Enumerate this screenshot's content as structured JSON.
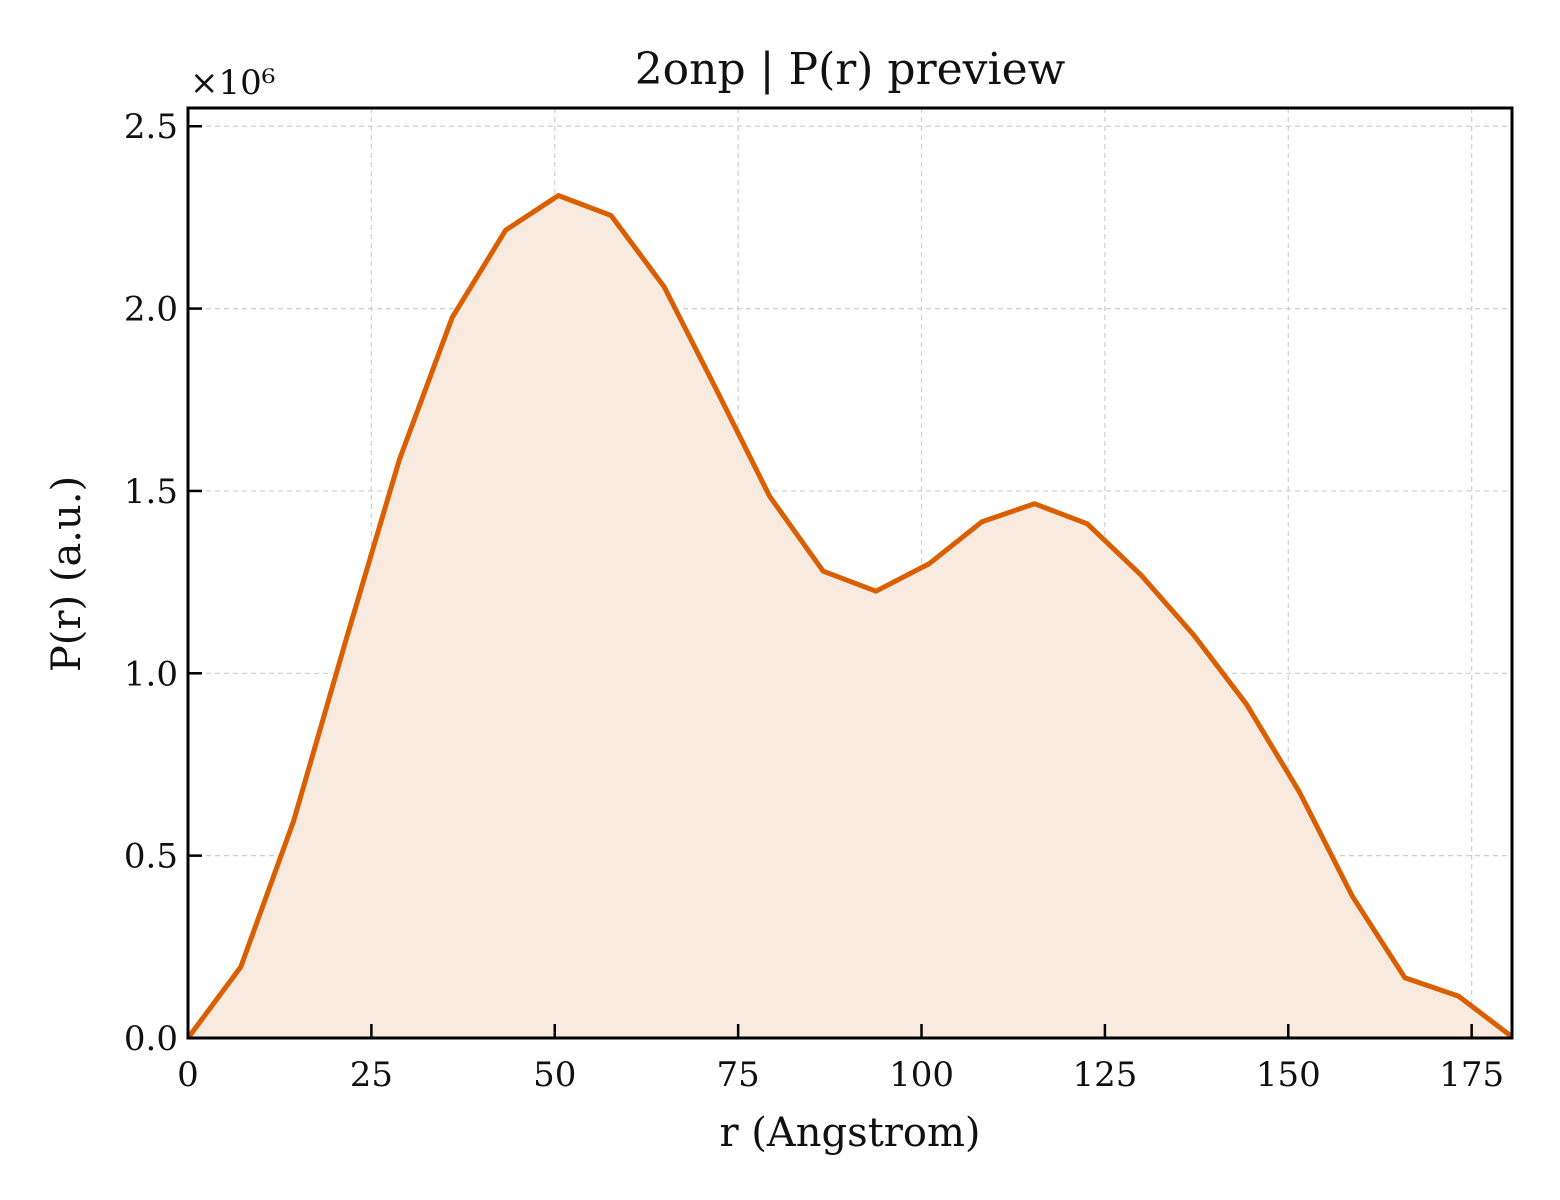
{
  "chart_data": {
    "type": "area",
    "title": "2onp | P(r) preview",
    "xlabel": "r (Angstrom)",
    "ylabel": "P(r) (a.u.)",
    "y_offset_text": "×10⁶",
    "xlim": [
      0,
      180.5
    ],
    "ylim": [
      0,
      2.55
    ],
    "xticks": [
      0,
      25,
      50,
      75,
      100,
      125,
      150,
      175
    ],
    "yticks": [
      0.0,
      0.5,
      1.0,
      1.5,
      2.0,
      2.5
    ],
    "xtick_labels": [
      "0",
      "25",
      "50",
      "75",
      "100",
      "125",
      "150",
      "175"
    ],
    "ytick_labels": [
      "0.0",
      "0.5",
      "1.0",
      "1.5",
      "2.0",
      "2.5"
    ],
    "grid": true,
    "legend": "none",
    "line_color": "#d95f02",
    "fill_color": "#f9eadf",
    "series": [
      {
        "x": [
          0,
          7.2,
          14.4,
          21.6,
          28.8,
          36.0,
          43.3,
          50.5,
          57.7,
          64.9,
          72.1,
          79.3,
          86.6,
          93.8,
          101.0,
          108.2,
          115.4,
          122.6,
          129.9,
          137.1,
          144.3,
          151.5,
          158.7,
          165.9,
          173.2,
          180.4
        ],
        "y": [
          0.0,
          0.195,
          0.595,
          1.095,
          1.585,
          1.975,
          2.215,
          2.31,
          2.255,
          2.06,
          1.775,
          1.485,
          1.28,
          1.225,
          1.3,
          1.415,
          1.465,
          1.41,
          1.27,
          1.105,
          0.915,
          0.675,
          0.39,
          0.165,
          0.115,
          0.005
        ]
      }
    ]
  }
}
